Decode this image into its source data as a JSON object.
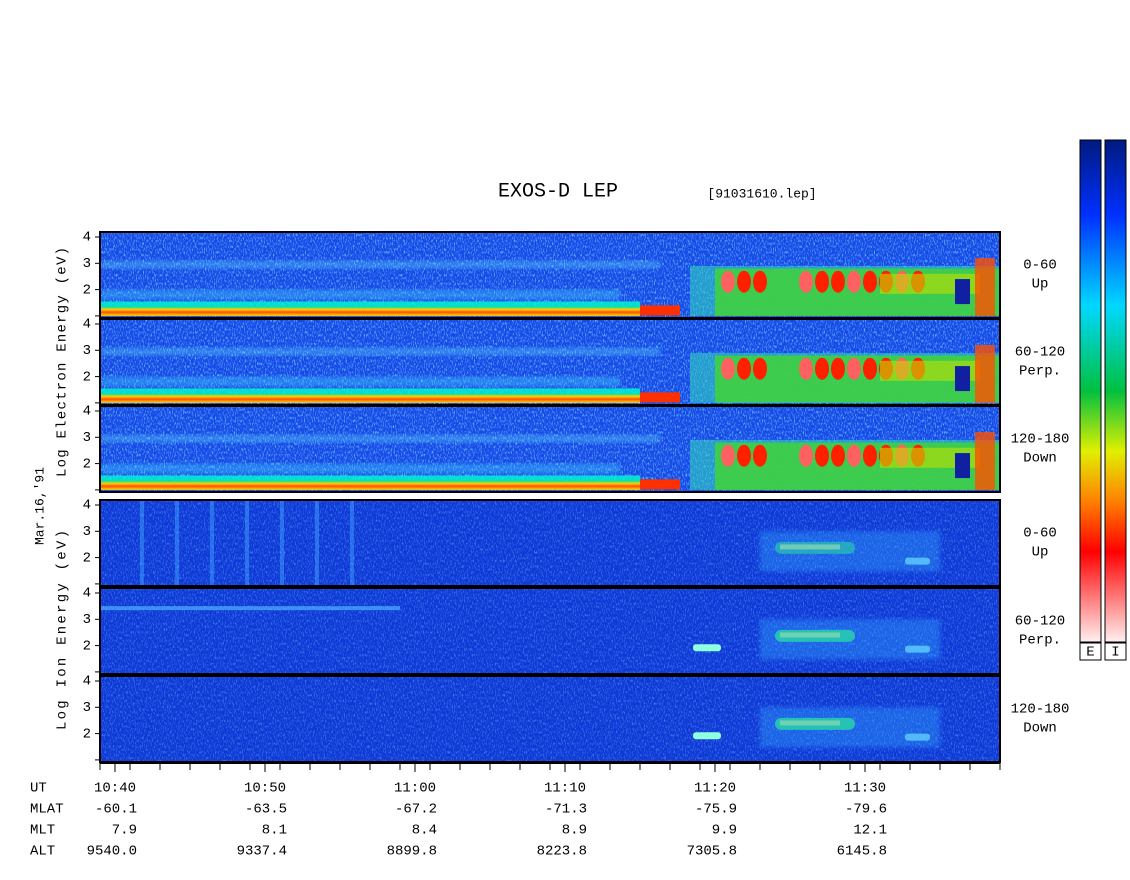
{
  "title": "EXOS-D LEP",
  "file": "[91031610.lep]",
  "date": "Mar.16,'91",
  "chart_data": {
    "type": "spectrogram",
    "ylim": [
      0.92,
      4.19
    ],
    "yticks": [
      2,
      3,
      4
    ],
    "minor_yticks": [
      1
    ],
    "xticks": [
      "10:40",
      "10:50",
      "11:00",
      "11:10",
      "11:20",
      "11:30"
    ],
    "groups": [
      {
        "ylabel": "Log Electron Energy (eV)",
        "species": "electron",
        "panels": [
          {
            "angle": "0-60",
            "direction": "Up"
          },
          {
            "angle": "60-120",
            "direction": "Perp."
          },
          {
            "angle": "120-180",
            "direction": "Down"
          }
        ]
      },
      {
        "ylabel": "Log Ion Energy (eV)",
        "species": "ion",
        "panels": [
          {
            "angle": "0-60",
            "direction": "Up"
          },
          {
            "angle": "60-120",
            "direction": "Perp."
          },
          {
            "angle": "120-180",
            "direction": "Down"
          }
        ]
      }
    ],
    "colorbars": [
      "E",
      "I"
    ]
  },
  "ephemeris": {
    "ut_label": "UT",
    "rows": [
      {
        "label": "MLAT",
        "values": [
          "-60.1",
          "-63.5",
          "-67.2",
          "-71.3",
          "-75.9",
          "-79.6"
        ]
      },
      {
        "label": "MLT",
        "values": [
          "7.9",
          "8.1",
          "8.4",
          "8.9",
          "9.9",
          "12.1"
        ]
      },
      {
        "label": "ALT",
        "values": [
          "9540.0",
          "9337.4",
          "8899.8",
          "8223.8",
          "7305.8",
          "6145.8"
        ]
      }
    ]
  }
}
